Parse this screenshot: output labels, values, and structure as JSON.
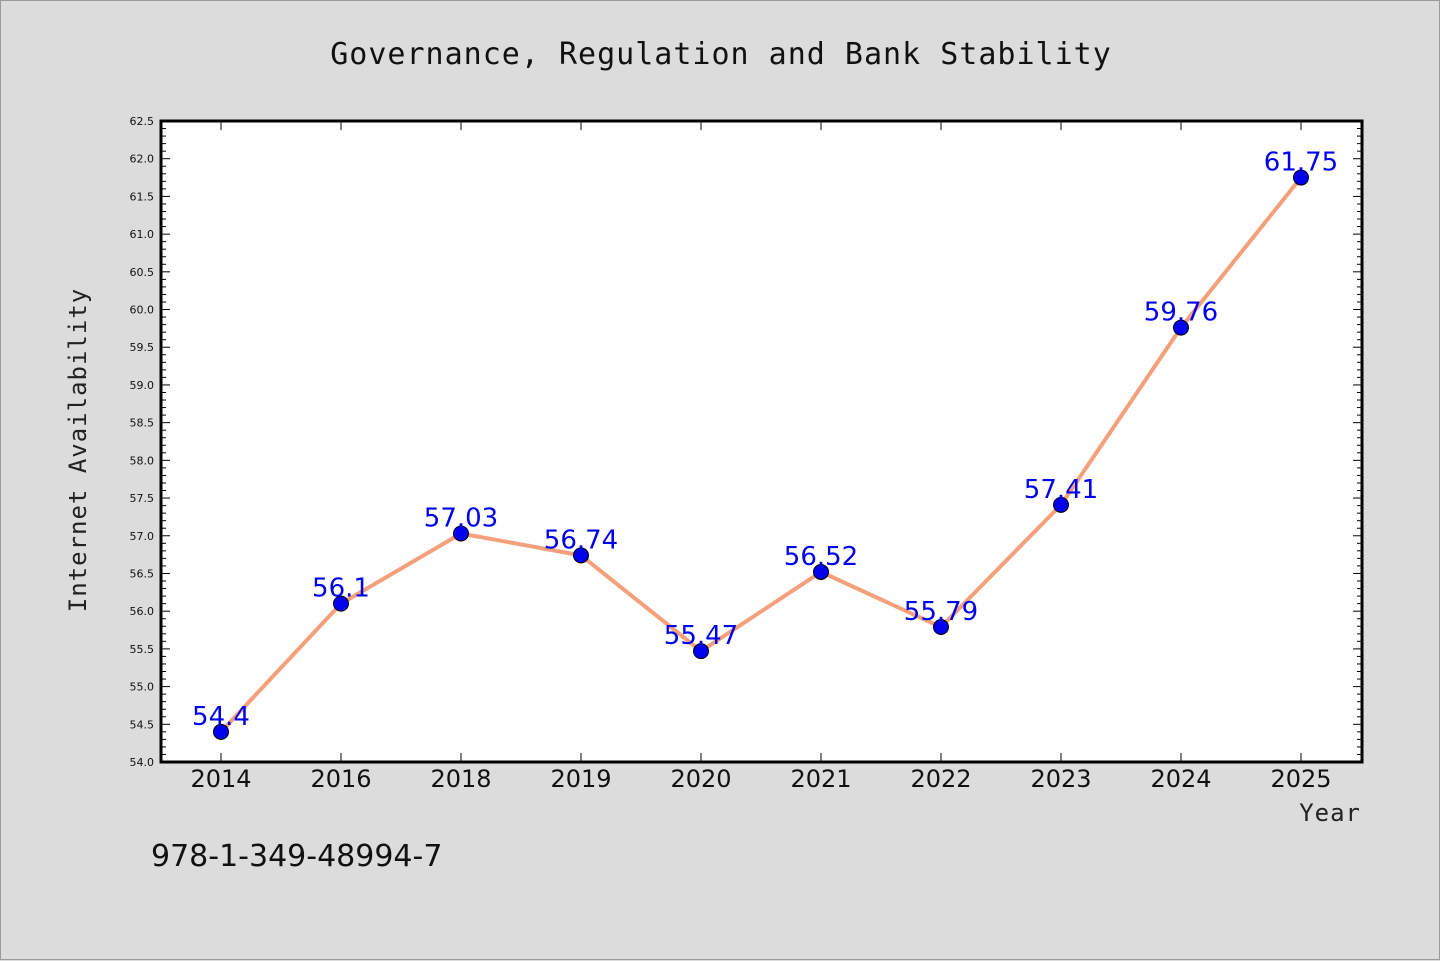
{
  "chart_data": {
    "type": "line",
    "title": "Governance, Regulation and Bank Stability",
    "xlabel": "Year",
    "ylabel": "Internet Availability",
    "categories": [
      "2014",
      "2016",
      "2018",
      "2019",
      "2020",
      "2021",
      "2022",
      "2023",
      "2024",
      "2025"
    ],
    "series": [
      {
        "values": [
          54.4,
          56.1,
          57.03,
          56.74,
          55.47,
          56.52,
          55.79,
          57.41,
          59.76,
          61.75
        ],
        "labels": [
          "54.4",
          "56.1",
          "57.03",
          "56.74",
          "55.47",
          "56.52",
          "55.79",
          "57.41",
          "59.76",
          "61.75"
        ],
        "line_color": "#f4a07a",
        "marker_color": "#0000ee"
      }
    ],
    "ylim": [
      54.0,
      62.5
    ],
    "ytick_step": 0.5,
    "grid": false,
    "legend": "none"
  },
  "footnote": "978-1-349-48994-7"
}
